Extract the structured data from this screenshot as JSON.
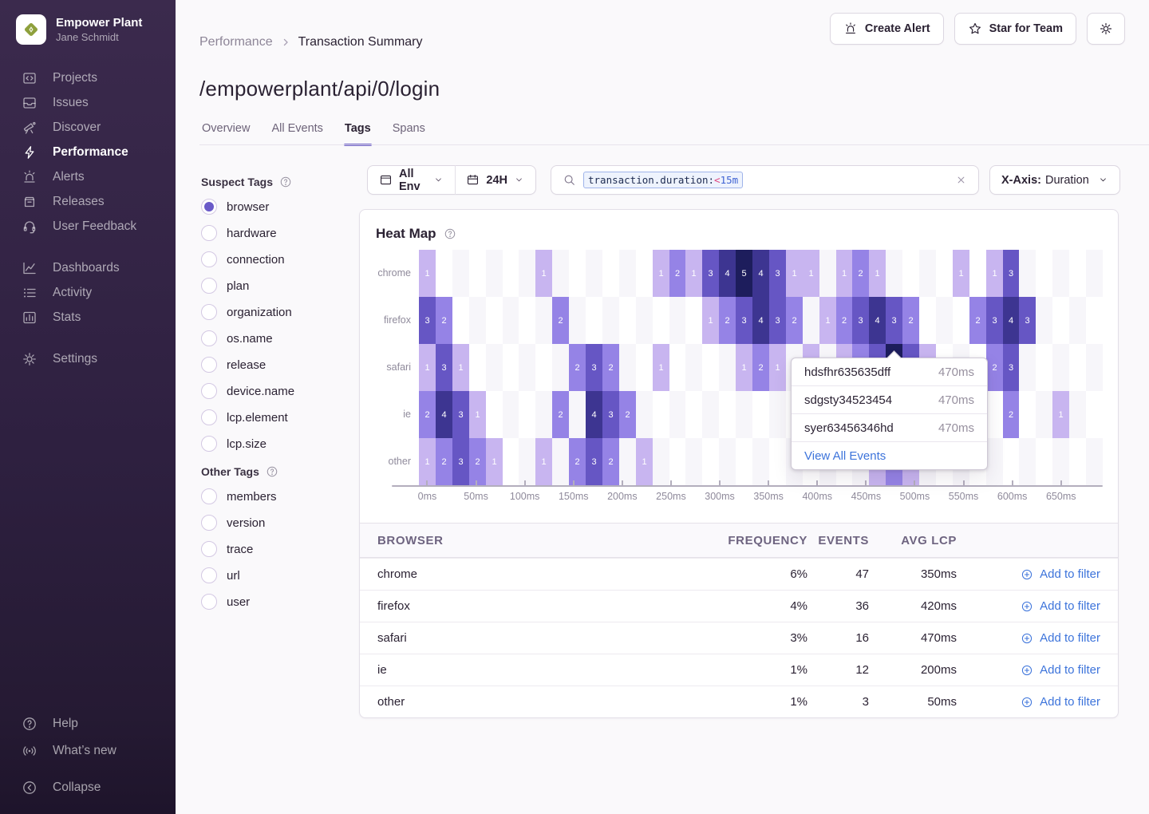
{
  "colors": {
    "accent": "#6C5FC7",
    "link_blue": "#3D74DB",
    "heat_scale": [
      "#c8b5f0",
      "#9583e6",
      "#6656c4",
      "#3d3591",
      "#1d1d5c"
    ],
    "checker_light": "#f7f6fa",
    "checker_white": "#ffffff"
  },
  "sidebar": {
    "org_name": "Empower Plant",
    "user_name": "Jane Schmidt",
    "nav_groups": [
      [
        {
          "icon": "projects",
          "label": "Projects",
          "active": false
        },
        {
          "icon": "issues",
          "label": "Issues",
          "active": false
        },
        {
          "icon": "discover",
          "label": "Discover",
          "active": false
        },
        {
          "icon": "performance",
          "label": "Performance",
          "active": true
        },
        {
          "icon": "alerts",
          "label": "Alerts",
          "active": false
        },
        {
          "icon": "releases",
          "label": "Releases",
          "active": false
        },
        {
          "icon": "user-feedback",
          "label": "User Feedback",
          "active": false
        }
      ],
      [
        {
          "icon": "dashboards",
          "label": "Dashboards",
          "active": false
        },
        {
          "icon": "activity",
          "label": "Activity",
          "active": false
        },
        {
          "icon": "stats",
          "label": "Stats",
          "active": false
        }
      ],
      [
        {
          "icon": "settings",
          "label": "Settings",
          "active": false
        }
      ]
    ],
    "footer_items": [
      {
        "icon": "help",
        "label": "Help"
      },
      {
        "icon": "whats-new",
        "label": "What’s new"
      }
    ],
    "collapse_label": "Collapse"
  },
  "header": {
    "breadcrumb": [
      "Performance",
      "Transaction Summary"
    ],
    "title": "/empowerplant/api/0/login",
    "tabs": [
      {
        "label": "Overview",
        "active": false
      },
      {
        "label": "All Events",
        "active": false
      },
      {
        "label": "Tags",
        "active": true
      },
      {
        "label": "Spans",
        "active": false
      }
    ],
    "actions": {
      "create_alert": "Create Alert",
      "star_for_team": "Star for Team"
    }
  },
  "filters": {
    "env": "All Env",
    "time": "24H",
    "search_token": {
      "key": "transaction.duration:",
      "op": "<",
      "value": "15m"
    },
    "xaxis_label": "X-Axis:",
    "xaxis_value": "Duration"
  },
  "tags_panel": {
    "suspect_title": "Suspect Tags",
    "suspect": [
      "browser",
      "hardware",
      "connection",
      "plan",
      "organization",
      "os.name",
      "release",
      "device.name",
      "lcp.element",
      "lcp.size"
    ],
    "selected": "browser",
    "other_title": "Other Tags",
    "other": [
      "members",
      "version",
      "trace",
      "url",
      "user"
    ]
  },
  "chart_data": {
    "type": "heatmap",
    "title": "Heat Map",
    "rows": [
      "chrome",
      "firefox",
      "safari",
      "ie",
      "other"
    ],
    "x_labels": [
      "0ms",
      "50ms",
      "100ms",
      "150ms",
      "200ms",
      "250ms",
      "300ms",
      "350ms",
      "400ms",
      "450ms",
      "500ms",
      "550ms",
      "600ms",
      "650ms"
    ],
    "num_cols": 41,
    "value_range": [
      1,
      5
    ],
    "cells": {
      "chrome": [
        [
          0,
          1
        ],
        [
          7,
          1
        ],
        [
          14,
          1
        ],
        [
          15,
          2
        ],
        [
          16,
          1
        ],
        [
          17,
          3
        ],
        [
          18,
          4
        ],
        [
          19,
          5
        ],
        [
          20,
          4
        ],
        [
          21,
          3
        ],
        [
          22,
          1
        ],
        [
          23,
          1
        ],
        [
          25,
          1
        ],
        [
          26,
          2
        ],
        [
          27,
          1
        ],
        [
          32,
          1
        ],
        [
          34,
          1
        ],
        [
          35,
          3
        ]
      ],
      "firefox": [
        [
          0,
          3
        ],
        [
          1,
          2
        ],
        [
          8,
          2
        ],
        [
          17,
          1
        ],
        [
          18,
          2
        ],
        [
          19,
          3
        ],
        [
          20,
          4
        ],
        [
          21,
          3
        ],
        [
          22,
          2
        ],
        [
          24,
          1
        ],
        [
          25,
          2
        ],
        [
          26,
          3
        ],
        [
          27,
          4
        ],
        [
          28,
          3
        ],
        [
          29,
          2
        ],
        [
          33,
          2
        ],
        [
          34,
          3
        ],
        [
          35,
          4
        ],
        [
          36,
          3
        ]
      ],
      "safari": [
        [
          0,
          1
        ],
        [
          1,
          3
        ],
        [
          2,
          1
        ],
        [
          9,
          2
        ],
        [
          10,
          3
        ],
        [
          11,
          2
        ],
        [
          14,
          1
        ],
        [
          19,
          1
        ],
        [
          20,
          2
        ],
        [
          21,
          1
        ],
        [
          23,
          1
        ],
        [
          25,
          1
        ],
        [
          26,
          2
        ],
        [
          27,
          3
        ],
        [
          28,
          5
        ],
        [
          29,
          3
        ],
        [
          30,
          1
        ],
        [
          34,
          2
        ],
        [
          35,
          3
        ]
      ],
      "ie": [
        [
          0,
          2
        ],
        [
          1,
          4
        ],
        [
          2,
          3
        ],
        [
          3,
          1
        ],
        [
          8,
          2
        ],
        [
          10,
          4
        ],
        [
          11,
          3
        ],
        [
          12,
          2
        ],
        [
          35,
          2
        ],
        [
          38,
          1
        ]
      ],
      "other": [
        [
          0,
          1
        ],
        [
          1,
          2
        ],
        [
          2,
          3
        ],
        [
          3,
          2
        ],
        [
          4,
          1
        ],
        [
          7,
          1
        ],
        [
          9,
          2
        ],
        [
          10,
          3
        ],
        [
          11,
          2
        ],
        [
          13,
          1
        ],
        [
          27,
          1
        ],
        [
          28,
          2
        ],
        [
          29,
          1
        ]
      ]
    }
  },
  "tooltip": {
    "events": [
      {
        "id": "hdsfhr635635dff",
        "duration": "470ms"
      },
      {
        "id": "sdgsty34523454",
        "duration": "470ms"
      },
      {
        "id": "syer63456346hd",
        "duration": "470ms"
      }
    ],
    "link_label": "View All Events"
  },
  "table": {
    "headers": [
      "Browser",
      "Frequency",
      "Events",
      "Avg LCP"
    ],
    "rows": [
      {
        "browser": "chrome",
        "frequency": "6%",
        "events": "47",
        "avg_lcp": "350ms"
      },
      {
        "browser": "firefox",
        "frequency": "4%",
        "events": "36",
        "avg_lcp": "420ms"
      },
      {
        "browser": "safari",
        "frequency": "3%",
        "events": "16",
        "avg_lcp": "470ms"
      },
      {
        "browser": "ie",
        "frequency": "1%",
        "events": "12",
        "avg_lcp": "200ms"
      },
      {
        "browser": "other",
        "frequency": "1%",
        "events": "3",
        "avg_lcp": "50ms"
      }
    ],
    "action_label": "Add to filter"
  }
}
